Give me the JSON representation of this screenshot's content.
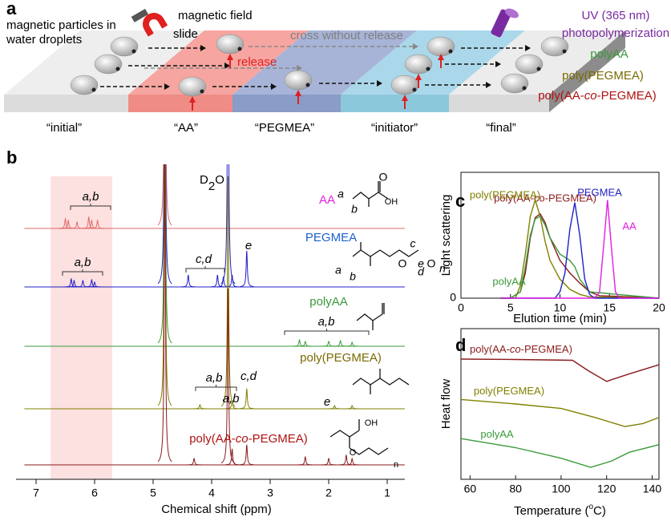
{
  "panel_labels": [
    "a",
    "b",
    "c",
    "d"
  ],
  "panel_a": {
    "particles": [
      "magnetic particles in",
      "water droplets"
    ],
    "field": "magnetic field",
    "slide": "slide",
    "release": "release",
    "cross": "cross without release",
    "uv": [
      "UV (365 nm)",
      "photopolymerization"
    ],
    "products": [
      {
        "parts": [
          "polyAA"
        ],
        "color": "#3a9a3a"
      },
      {
        "parts": [
          "poly(PEGMEA)"
        ],
        "color": "#7a6a00"
      },
      {
        "parts": [
          "poly(AA-",
          "co",
          "-PEGMEA)"
        ],
        "color": "#b01010"
      }
    ],
    "stages": [
      "“initial”",
      "“AA”",
      "“PEGMEA”",
      "“initiator”",
      "“final”"
    ]
  },
  "panel_b": {
    "xlabel": "Chemical shift (ppm)",
    "xlim": [
      7.2,
      0.7
    ],
    "xticks": [
      7,
      6,
      5,
      4,
      3,
      2,
      1
    ],
    "highlight": [
      6.75,
      5.7
    ],
    "solvent": [
      "D",
      "2",
      "O"
    ],
    "spectra": [
      {
        "name": [
          "AA"
        ],
        "color": "#e06a6a",
        "label_color": "#e020e0",
        "x": [
          6.5,
          6.45,
          6.3,
          6.1,
          6.05,
          5.95,
          4.8
        ],
        "values": [
          12,
          10,
          8,
          14,
          10,
          10,
          400
        ]
      },
      {
        "name": [
          "PEGMEA"
        ],
        "color": "#2020c8",
        "label_color": "#2060d0",
        "x": [
          6.4,
          6.35,
          6.2,
          6.05,
          6.0,
          4.8,
          4.4,
          3.9,
          3.8,
          3.72,
          3.65,
          3.4
        ],
        "values": [
          10,
          8,
          8,
          9,
          6,
          400,
          15,
          15,
          12,
          400,
          15,
          45
        ]
      },
      {
        "name": [
          "polyAA"
        ],
        "color": "#3a9a3a",
        "label_color": "#3a9a3a",
        "x": [
          4.8,
          2.5,
          2.4,
          2.0,
          1.8,
          1.6
        ],
        "values": [
          400,
          8,
          6,
          6,
          7,
          5
        ]
      },
      {
        "name": [
          "poly(PEGMEA)"
        ],
        "color": "#808000",
        "label_color": "#7a6a00",
        "x": [
          4.8,
          4.2,
          3.72,
          3.65,
          3.4,
          1.9,
          1.6
        ],
        "values": [
          400,
          5,
          290,
          10,
          25,
          4,
          4
        ]
      },
      {
        "name": [
          "poly(AA-",
          "co",
          "-PEGMEA)"
        ],
        "color": "#8b1a1a",
        "label_color": "#b01010",
        "x": [
          4.8,
          4.3,
          3.72,
          3.65,
          3.4,
          2.4,
          2.0,
          1.7,
          1.6
        ],
        "values": [
          400,
          8,
          220,
          20,
          25,
          10,
          8,
          12,
          8
        ]
      }
    ],
    "peak_labels": [
      "a,b",
      "a,b",
      "c,d",
      "e",
      "a,b",
      "a,b",
      "c,d",
      "e",
      "a,b"
    ],
    "structure_labels": [
      "a",
      "b",
      "OH",
      "O",
      "a",
      "b",
      "O",
      "c",
      "d",
      "O",
      "n",
      "e",
      "OH",
      "O",
      "n"
    ]
  },
  "chart_data": [
    {
      "type": "line",
      "xlabel": "Elution time (min)",
      "ylabel": "Light scattering",
      "xlim": [
        0,
        20
      ],
      "xticks": [
        0,
        5,
        10,
        15,
        20
      ],
      "ylim": [
        0,
        1
      ],
      "yticks": [
        0
      ],
      "series": [
        {
          "name": "poly(AA-co-PEGMEA)",
          "color": "#8b1a1a",
          "x": [
            4,
            5,
            6,
            6.5,
            7,
            7.5,
            8,
            8.5,
            9,
            10,
            11,
            12,
            13,
            14,
            20
          ],
          "values": [
            0,
            0,
            0.05,
            0.2,
            0.48,
            0.64,
            0.67,
            0.6,
            0.48,
            0.3,
            0.2,
            0.12,
            0.05,
            0.02,
            0
          ]
        },
        {
          "name": "poly(PEGMEA)",
          "color": "#808000",
          "x": [
            4,
            5.5,
            6,
            6.5,
            7,
            7.5,
            8,
            8.5,
            9,
            10,
            11,
            12,
            13,
            20
          ],
          "values": [
            0,
            0,
            0.1,
            0.35,
            0.65,
            0.78,
            0.65,
            0.45,
            0.3,
            0.15,
            0.07,
            0.03,
            0.01,
            0
          ]
        },
        {
          "name": "polyAA",
          "color": "#3a9a3a",
          "x": [
            4,
            5,
            6,
            6.5,
            7,
            7.5,
            8,
            8.5,
            9,
            10,
            11,
            11.5,
            12,
            13,
            20
          ],
          "values": [
            0,
            0,
            0.05,
            0.25,
            0.5,
            0.63,
            0.65,
            0.58,
            0.48,
            0.35,
            0.3,
            0.25,
            0.15,
            0.05,
            0
          ]
        },
        {
          "name": "PEGMEA",
          "color": "#2020c8",
          "x": [
            4,
            9.5,
            10,
            10.5,
            11,
            11.5,
            12,
            12.5,
            13,
            13.5,
            20
          ],
          "values": [
            0,
            0,
            0.05,
            0.2,
            0.55,
            0.76,
            0.5,
            0.15,
            0.03,
            0,
            0
          ]
        },
        {
          "name": "AA",
          "color": "#e020e0",
          "x": [
            4,
            13.5,
            14,
            14.5,
            14.8,
            15.2,
            15.6,
            16,
            20
          ],
          "values": [
            0,
            0,
            0.05,
            0.5,
            0.78,
            0.4,
            0.05,
            0,
            0
          ]
        }
      ]
    },
    {
      "type": "line",
      "xlabel": [
        "Temperature (",
        "o",
        "C)"
      ],
      "ylabel": "Heat flow",
      "xlim": [
        56,
        143
      ],
      "xticks": [
        60,
        80,
        100,
        120,
        140
      ],
      "ylim": [
        0,
        10
      ],
      "series": [
        {
          "name": [
            "poly(AA-",
            "co",
            "-PEGMEA)"
          ],
          "color": "#8b1a1a",
          "x": [
            56,
            80,
            105,
            112,
            120,
            130,
            143
          ],
          "values": [
            7.98,
            7.95,
            7.9,
            7.2,
            6.5,
            7.0,
            7.6
          ]
        },
        {
          "name": [
            "poly(PEGMEA)"
          ],
          "color": "#808000",
          "x": [
            56,
            80,
            100,
            115,
            128,
            136,
            143
          ],
          "values": [
            5.3,
            5.0,
            4.7,
            4.1,
            3.5,
            3.7,
            4.1
          ]
        },
        {
          "name": [
            "polyAA"
          ],
          "color": "#3a9a3a",
          "x": [
            56,
            80,
            100,
            113,
            122,
            130,
            143
          ],
          "values": [
            2.7,
            2.1,
            1.4,
            0.8,
            1.2,
            1.8,
            2.3
          ]
        }
      ]
    }
  ]
}
